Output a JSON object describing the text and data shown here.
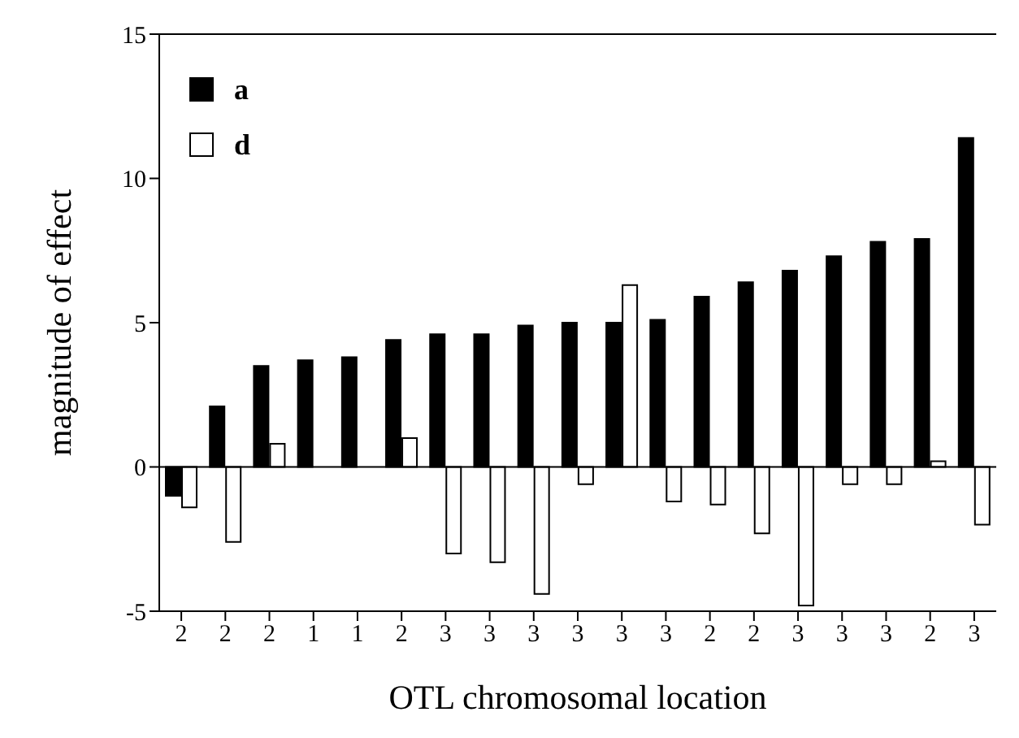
{
  "chart_data": {
    "type": "bar",
    "xlabel": "OTL chromosomal location",
    "ylabel": "magnitude of effect",
    "categories": [
      "2",
      "2",
      "2",
      "1",
      "1",
      "2",
      "3",
      "3",
      "3",
      "3",
      "3",
      "3",
      "2",
      "2",
      "3",
      "3",
      "3",
      "2",
      "3"
    ],
    "series": [
      {
        "name": "a",
        "color": "#000000",
        "values": [
          -1.0,
          2.1,
          3.5,
          3.7,
          3.8,
          4.4,
          4.6,
          4.6,
          4.9,
          5.0,
          5.0,
          5.1,
          5.9,
          6.4,
          6.8,
          7.3,
          7.8,
          7.9,
          11.4
        ]
      },
      {
        "name": "d",
        "color": "#ffffff",
        "values": [
          -1.4,
          -2.6,
          0.8,
          0,
          0,
          1.0,
          -3.0,
          -3.3,
          -4.4,
          -0.6,
          6.3,
          -1.2,
          -1.3,
          -2.3,
          -4.8,
          -0.6,
          -0.6,
          0.2,
          -2.0
        ]
      }
    ],
    "ylim": [
      -5,
      15
    ],
    "yticks": [
      -5,
      0,
      5,
      10,
      15
    ],
    "grid": false,
    "legend": "top left",
    "ref_lines": [
      {
        "axis": "y",
        "value": 0,
        "label": null
      }
    ]
  }
}
